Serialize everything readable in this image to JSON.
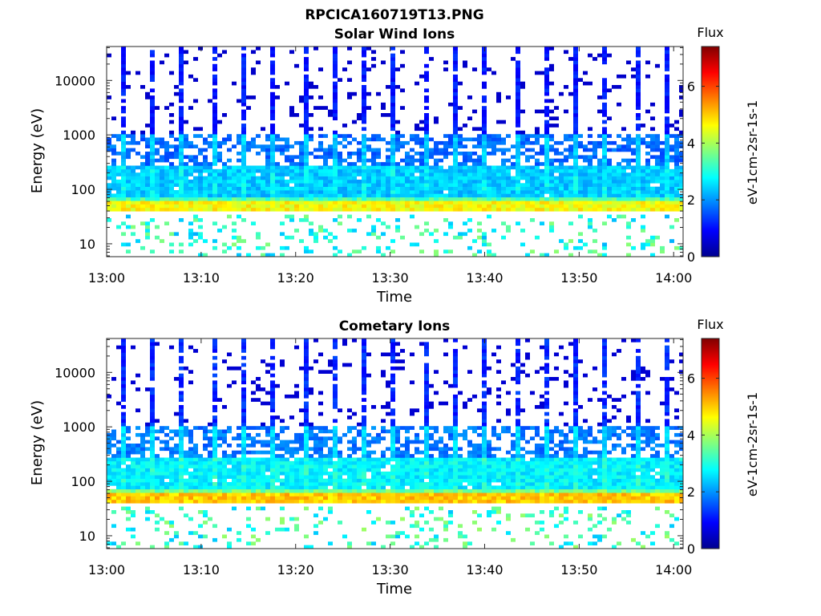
{
  "figure_title": "RPCICA160719T13.PNG",
  "colorbar": {
    "title": "Flux",
    "unit_label": "eV-1cm-2sr-1s-1",
    "range": [
      0,
      7.4
    ],
    "ticks": [
      "0",
      "2",
      "4",
      "6"
    ],
    "colormap": "jet"
  },
  "chart_data": [
    {
      "type": "heatmap",
      "title": "Solar Wind Ions",
      "xlabel": "Time",
      "ylabel": "Energy (eV)",
      "x_ticks": [
        "13:00",
        "13:10",
        "13:20",
        "13:30",
        "13:40",
        "13:50",
        "14:00"
      ],
      "x_range": [
        "13:00",
        "14:01"
      ],
      "y_ticks": [
        "10",
        "100",
        "1000",
        "10000"
      ],
      "y_range": [
        5.8,
        42000
      ],
      "y_scale": "log",
      "z_label": "Flux",
      "z_range": [
        0,
        7.4
      ],
      "sweep_period_min": 3.2,
      "band_levels": [
        {
          "energy_range_eV": [
            38,
            60
          ],
          "flux": 4.6
        },
        {
          "energy_range_eV": [
            60,
            75
          ],
          "flux": 3.3
        },
        {
          "energy_range_eV": [
            75,
            260
          ],
          "flux": 2.4
        },
        {
          "energy_range_eV": [
            260,
            1100
          ],
          "flux": 2.0
        },
        {
          "energy_range_eV": [
            1100,
            42000
          ],
          "flux": 0.9
        },
        {
          "energy_range_eV": [
            6,
            35
          ],
          "flux": 3.0
        }
      ]
    },
    {
      "type": "heatmap",
      "title": "Cometary Ions",
      "xlabel": "Time",
      "ylabel": "Energy (eV)",
      "x_ticks": [
        "13:00",
        "13:10",
        "13:20",
        "13:30",
        "13:40",
        "13:50",
        "14:00"
      ],
      "x_range": [
        "13:00",
        "14:01"
      ],
      "y_ticks": [
        "10",
        "100",
        "1000",
        "10000"
      ],
      "y_range": [
        5.8,
        42000
      ],
      "y_scale": "log",
      "z_label": "Flux",
      "z_range": [
        0,
        7.4
      ],
      "sweep_period_min": 3.2,
      "band_levels": [
        {
          "energy_range_eV": [
            38,
            60
          ],
          "flux": 5.0
        },
        {
          "energy_range_eV": [
            60,
            75
          ],
          "flux": 3.6
        },
        {
          "energy_range_eV": [
            75,
            260
          ],
          "flux": 2.7
        },
        {
          "energy_range_eV": [
            260,
            1100
          ],
          "flux": 2.1
        },
        {
          "energy_range_eV": [
            1100,
            42000
          ],
          "flux": 1.0
        },
        {
          "energy_range_eV": [
            6,
            35
          ],
          "flux": 3.1
        }
      ]
    }
  ]
}
